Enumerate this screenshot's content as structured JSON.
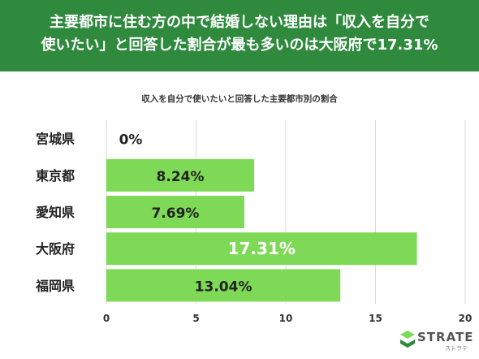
{
  "header": {
    "title_line1": "主要都市に住む方の中で結婚しない理由は「収入を自分で",
    "title_line2": "使いたい」と回答した割合が最も多いのは大阪府で17.31%"
  },
  "brand": {
    "name": "STRATE",
    "sub": "ストラテ"
  },
  "colors": {
    "banner": "#2f8a3e",
    "bar": "#7ed957",
    "grid": "#d9d9d9"
  },
  "chart_data": {
    "type": "bar",
    "orientation": "horizontal",
    "title": "収入を自分で使いたいと回答した主要都市別の割合",
    "categories": [
      "宮城県",
      "東京都",
      "愛知県",
      "大阪府",
      "福岡県"
    ],
    "values": [
      0,
      8.24,
      7.69,
      17.31,
      13.04
    ],
    "value_labels": [
      "0%",
      "8.24%",
      "7.69%",
      "17.31%",
      "13.04%"
    ],
    "xlim": [
      0,
      20
    ],
    "xticks": [
      0,
      5,
      10,
      15,
      20
    ],
    "xlabel": "",
    "ylabel": "",
    "grid": true
  }
}
